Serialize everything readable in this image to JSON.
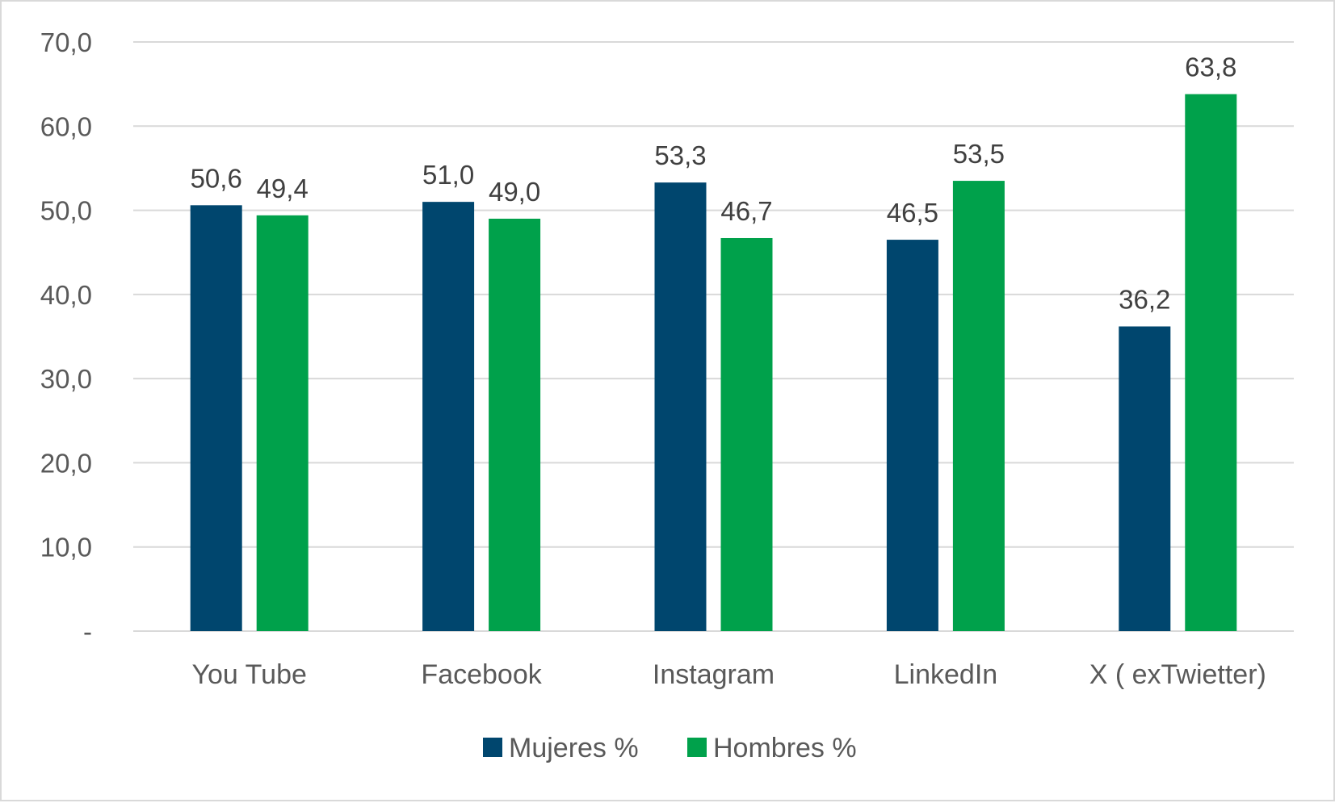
{
  "chart_data": {
    "type": "bar",
    "categories": [
      "You Tube",
      "Facebook",
      "Instagram",
      "LinkedIn",
      "X ( exTwietter)"
    ],
    "series": [
      {
        "name": "Mujeres %",
        "color": "#00466e",
        "values": [
          50.6,
          51.0,
          53.3,
          46.5,
          36.2
        ],
        "labels": [
          "50,6",
          "51,0",
          "53,3",
          "46,5",
          "36,2"
        ]
      },
      {
        "name": "Hombres %",
        "color": "#00a14b",
        "values": [
          49.4,
          49.0,
          46.7,
          53.5,
          63.8
        ],
        "labels": [
          "49,4",
          "49,0",
          "46,7",
          "53,5",
          "63,8"
        ]
      }
    ],
    "ylim": [
      0,
      70
    ],
    "yticks": [
      0,
      10,
      20,
      30,
      40,
      50,
      60,
      70
    ],
    "ytick_labels": [
      "-",
      "10,0",
      "20,0",
      "30,0",
      "40,0",
      "50,0",
      "60,0",
      "70,0"
    ],
    "grid": true,
    "gridline_color": "#d9d9d9",
    "legend_position": "bottom",
    "title": "",
    "xlabel": "",
    "ylabel": ""
  }
}
